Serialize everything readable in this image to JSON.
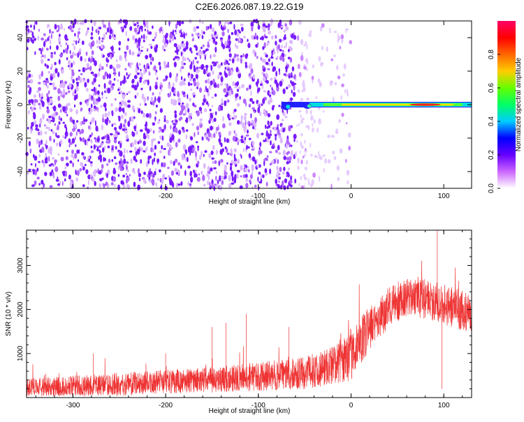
{
  "title": "C2E6.2026.087.19.22.G19",
  "chart_data": [
    {
      "type": "heatmap",
      "xlabel": "Height of straight line (km)",
      "ylabel": "Frequency (Hz)",
      "xlim": [
        -350,
        130
      ],
      "ylim": [
        -50,
        50
      ],
      "xticks": [
        -300,
        -200,
        -100,
        0,
        100
      ],
      "yticks": [
        -40,
        -20,
        0,
        20,
        40
      ],
      "colorbar": {
        "label": "Normalized spectral amplitude",
        "range": [
          0,
          1
        ],
        "ticks": [
          "0.0",
          "0.2",
          "0.4",
          "0.6",
          "0.8"
        ],
        "colors": [
          "#ffffff",
          "#cc66ff",
          "#6600ff",
          "#0000ff",
          "#00ccff",
          "#00ff66",
          "#66ff00",
          "#ffcc00",
          "#ff6600",
          "#ff0000",
          "#ff0066"
        ]
      },
      "features": {
        "noise_region_x": [
          -350,
          -40
        ],
        "noise_fade_x": [
          -60,
          0
        ],
        "signal_line": {
          "frequency_hz": 0,
          "x_start": -75,
          "x_end": 130,
          "peak_x": 80,
          "peak_amplitude": 0.9
        }
      }
    },
    {
      "type": "line",
      "xlabel": "Height of straight line (km)",
      "ylabel": "SNR (10 * v/v)",
      "xlim": [
        -350,
        130
      ],
      "ylim": [
        0,
        3800
      ],
      "xticks": [
        -300,
        -200,
        -100,
        0,
        100
      ],
      "yticks": [
        1000,
        2000,
        3000
      ],
      "series": [
        {
          "color": "#ee3333",
          "envelope": {
            "x": [
              -350,
              -300,
              -250,
              -200,
              -150,
              -100,
              -50,
              -20,
              0,
              20,
              40,
              60,
              80,
              100,
              130
            ],
            "base": [
              150,
              180,
              220,
              280,
              320,
              380,
              450,
              600,
              800,
              1400,
              1900,
              2150,
              2100,
              1950,
              1800
            ],
            "spread": [
              350,
              380,
              400,
              420,
              450,
              500,
              560,
              700,
              900,
              800,
              700,
              650,
              700,
              750,
              700
            ]
          },
          "spikes": [
            {
              "x": -278,
              "y": 1000
            },
            {
              "x": -200,
              "y": 1000
            },
            {
              "x": -150,
              "y": 1600
            },
            {
              "x": -135,
              "y": 1700
            },
            {
              "x": -113,
              "y": 1900
            },
            {
              "x": -67,
              "y": 1600
            },
            {
              "x": 93,
              "y": 3800
            },
            {
              "x": 97,
              "y": 2000
            },
            {
              "x": 98,
              "y": 200
            }
          ]
        }
      ]
    }
  ]
}
